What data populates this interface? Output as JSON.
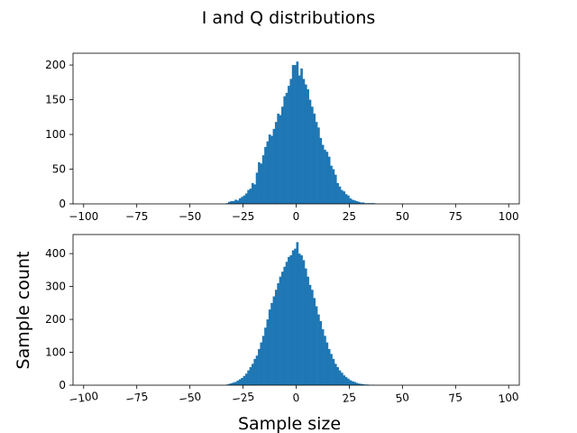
{
  "figure": {
    "suptitle": "I and Q distributions",
    "xlabel": "Sample size",
    "ylabel": "Sample count"
  },
  "colors": {
    "bar": "#1f77b4"
  },
  "chart_data": [
    {
      "type": "bar",
      "title": "",
      "xlabel": "",
      "ylabel": "",
      "xlim": [
        -105,
        105
      ],
      "ylim": [
        0,
        217
      ],
      "xticks": [
        "−100",
        "−75",
        "−50",
        "−25",
        "0",
        "25",
        "50",
        "75",
        "100"
      ],
      "xtick_values": [
        -100,
        -75,
        -50,
        -25,
        0,
        25,
        50,
        75,
        100
      ],
      "yticks": [
        "0",
        "50",
        "100",
        "150",
        "200"
      ],
      "ytick_values": [
        0,
        50,
        100,
        150,
        200
      ],
      "bin_width": 1,
      "x": [
        -33,
        -32,
        -31,
        -30,
        -29,
        -28,
        -27,
        -26,
        -25,
        -24,
        -23,
        -22,
        -21,
        -20,
        -19,
        -18,
        -17,
        -16,
        -15,
        -14,
        -13,
        -12,
        -11,
        -10,
        -9,
        -8,
        -7,
        -6,
        -5,
        -4,
        -3,
        -2,
        -1,
        0,
        1,
        2,
        3,
        4,
        5,
        6,
        7,
        8,
        9,
        10,
        11,
        12,
        13,
        14,
        15,
        16,
        17,
        18,
        19,
        20,
        21,
        22,
        23,
        24,
        25,
        26,
        27,
        28,
        29,
        30,
        31,
        32,
        33,
        34,
        35,
        36
      ],
      "values": [
        1,
        3,
        4,
        4,
        6,
        5,
        8,
        10,
        12,
        15,
        20,
        22,
        30,
        28,
        45,
        60,
        58,
        70,
        82,
        90,
        100,
        98,
        108,
        118,
        130,
        128,
        140,
        155,
        160,
        170,
        180,
        200,
        200,
        205,
        185,
        195,
        180,
        172,
        165,
        150,
        140,
        130,
        118,
        110,
        95,
        85,
        78,
        75,
        68,
        55,
        50,
        42,
        30,
        25,
        20,
        18,
        14,
        12,
        8,
        6,
        5,
        4,
        3,
        2,
        2,
        1,
        1,
        1,
        1,
        1
      ]
    },
    {
      "type": "bar",
      "title": "",
      "xlabel": "Sample size",
      "ylabel": "Sample count",
      "xlim": [
        -105,
        105
      ],
      "ylim": [
        0,
        458
      ],
      "xticks": [
        "−100",
        "−75",
        "−50",
        "−25",
        "0",
        "25",
        "50",
        "75",
        "100"
      ],
      "xtick_values": [
        -100,
        -75,
        -50,
        -25,
        0,
        25,
        50,
        75,
        100
      ],
      "yticks": [
        "0",
        "100",
        "200",
        "300",
        "400"
      ],
      "ytick_values": [
        0,
        100,
        200,
        300,
        400
      ],
      "bin_width": 1,
      "x": [
        -33,
        -32,
        -31,
        -30,
        -29,
        -28,
        -27,
        -26,
        -25,
        -24,
        -23,
        -22,
        -21,
        -20,
        -19,
        -18,
        -17,
        -16,
        -15,
        -14,
        -13,
        -12,
        -11,
        -10,
        -9,
        -8,
        -7,
        -6,
        -5,
        -4,
        -3,
        -2,
        -1,
        0,
        1,
        2,
        3,
        4,
        5,
        6,
        7,
        8,
        9,
        10,
        11,
        12,
        13,
        14,
        15,
        16,
        17,
        18,
        19,
        20,
        21,
        22,
        23,
        24,
        25,
        26,
        27,
        28,
        29,
        30,
        31,
        32,
        33,
        34,
        35,
        36
      ],
      "values": [
        2,
        4,
        6,
        8,
        10,
        14,
        18,
        22,
        28,
        35,
        45,
        55,
        65,
        80,
        90,
        110,
        130,
        150,
        175,
        200,
        230,
        250,
        270,
        290,
        310,
        330,
        345,
        360,
        375,
        390,
        395,
        410,
        415,
        435,
        400,
        395,
        380,
        355,
        330,
        305,
        290,
        265,
        240,
        215,
        195,
        170,
        150,
        130,
        110,
        95,
        80,
        65,
        55,
        45,
        38,
        30,
        25,
        20,
        15,
        12,
        10,
        7,
        5,
        4,
        3,
        2,
        2,
        1,
        1,
        1
      ]
    }
  ]
}
